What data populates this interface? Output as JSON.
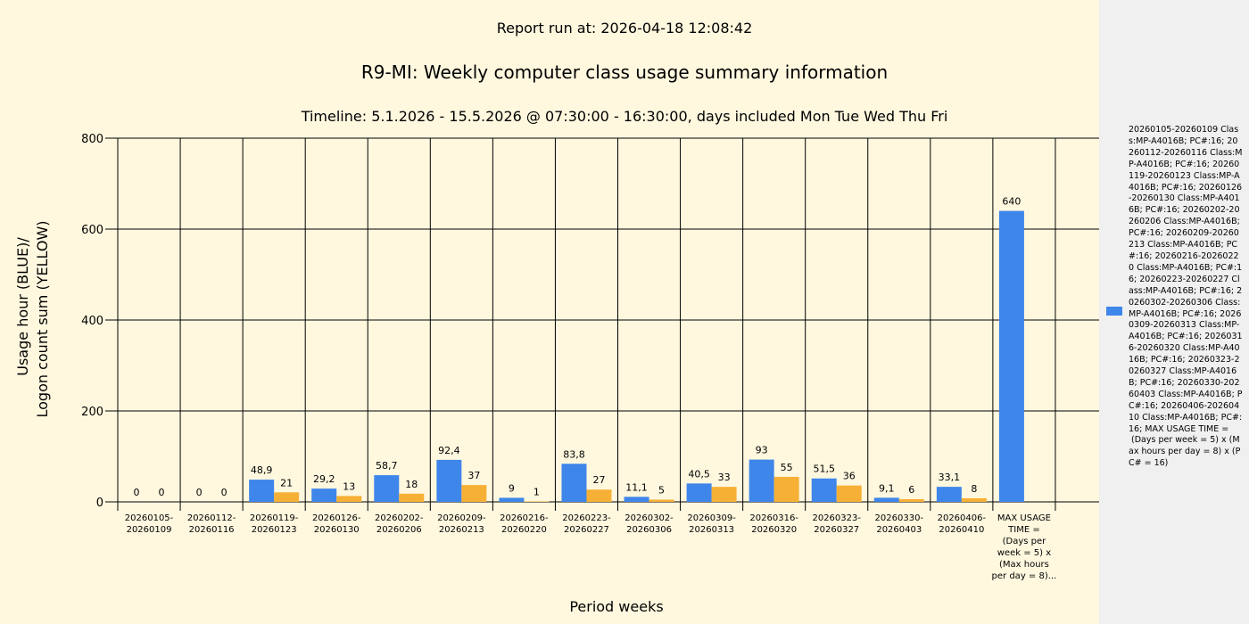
{
  "report_run": "Report run at: 2026-04-18 12:08:42",
  "colors": {
    "usage": "#3f86ea",
    "logon": "#f7b036",
    "background": "#fff8df",
    "legend_background": "#f0f0f0"
  },
  "legend": {
    "text": "20260105-20260109 Class:MP-A4016B; PC#:16; 20260112-20260116 Class:MP-A4016B; PC#:16; 20260119-20260123 Class:MP-A4016B; PC#:16; 20260126-20260130 Class:MP-A4016B; PC#:16; 20260202-20260206 Class:MP-A4016B; PC#:16; 20260209-20260213 Class:MP-A4016B; PC#:16; 20260216-20260220 Class:MP-A4016B; PC#:16; 20260223-20260227 Class:MP-A4016B; PC#:16; 20260302-20260306 Class:MP-A4016B; PC#:16; 20260309-20260313 Class:MP-A4016B; PC#:16; 20260316-20260320 Class:MP-A4016B; PC#:16; 20260323-20260327 Class:MP-A4016B; PC#:16; 20260330-20260403 Class:MP-A4016B; PC#:16; 20260406-20260410 Class:MP-A4016B; PC#:16; MAX USAGE TIME =\n (Days per week = 5) x (Max hours per day = 8) x (PC# = 16)",
    "placement": "right"
  },
  "chart_data": {
    "type": "bar",
    "title": "R9-MI: Weekly computer class usage summary information",
    "subtitle": "Timeline:  5.1.2026  - 15.5.2026  @  07:30:00 -  16:30:00, days included Mon Tue Wed Thu Fri",
    "xlabel": "Period weeks",
    "ylabel_line1": "Usage hour (BLUE)/",
    "ylabel_line2": "Logon count sum (YELLOW)",
    "ylim": [
      0,
      800
    ],
    "yticks": [
      "0",
      "200",
      "400",
      "600",
      "800"
    ],
    "grid": true,
    "categories": [
      "20260105-\n20260109",
      "20260112-\n20260116",
      "20260119-\n20260123",
      "20260126-\n20260130",
      "20260202-\n20260206",
      "20260209-\n20260213",
      "20260216-\n20260220",
      "20260223-\n20260227",
      "20260302-\n20260306",
      "20260309-\n20260313",
      "20260316-\n20260320",
      "20260323-\n20260327",
      "20260330-\n20260403",
      "20260406-\n20260410",
      "MAX USAGE\nTIME =\n(Days per\nweek = 5) x\n(Max hours\nper day = 8)..."
    ],
    "series": [
      {
        "values": [
          0,
          0,
          48.9,
          29.2,
          58.7,
          92.4,
          9,
          83.8,
          11.1,
          40.5,
          93,
          51.5,
          9.1,
          33.1,
          640
        ],
        "labels": [
          "0",
          "0",
          "48,9",
          "29,2",
          "58,7",
          "92,4",
          "9",
          "83,8",
          "11,1",
          "40,5",
          "93",
          "51,5",
          "9,1",
          "33,1",
          "640"
        ]
      },
      {
        "values": [
          0,
          0,
          21,
          13,
          18,
          37,
          1,
          27,
          5,
          33,
          55,
          36,
          6,
          8,
          null
        ],
        "labels": [
          "0",
          "0",
          "21",
          "13",
          "18",
          "37",
          "1",
          "27",
          "5",
          "33",
          "55",
          "36",
          "6",
          "8",
          null
        ]
      }
    ]
  }
}
